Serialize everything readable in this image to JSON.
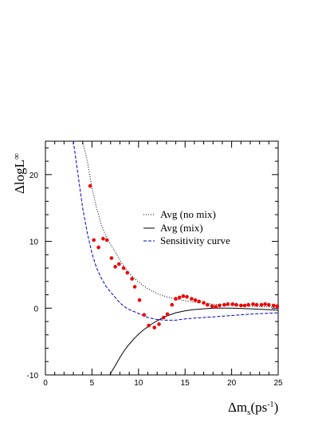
{
  "chart_data": {
    "type": "line",
    "xlabel_main": "Δm",
    "xlabel_sub": "s",
    "xlabel_unit_open": "(ps",
    "xlabel_unit_sup": "-1",
    "xlabel_unit_close": ")",
    "ylabel": "ΔlogL",
    "ylabel_sup": "∞",
    "xlim": [
      0,
      25
    ],
    "ylim": [
      -10,
      25
    ],
    "x_ticks": [
      "0",
      "5",
      "10",
      "15",
      "20",
      "25"
    ],
    "y_ticks": [
      "-10",
      "0",
      "10",
      "20"
    ],
    "legend_placement": "center-right",
    "series": [
      {
        "name": "Avg (no mix)",
        "style": "dotted",
        "color": "#000000",
        "x": [
          4.0,
          4.5,
          5.0,
          5.5,
          6.0,
          6.5,
          7.0,
          7.5,
          8.0,
          8.5,
          9.0,
          9.5,
          10.0,
          11.0,
          12.0,
          13.0,
          14.0,
          15.0,
          16.0,
          18.0,
          20.0,
          22.0,
          25.0
        ],
        "y": [
          25,
          22,
          18,
          15,
          12.5,
          10.8,
          9.5,
          8.4,
          7.2,
          6.1,
          5.2,
          4.5,
          3.9,
          2.9,
          2.2,
          1.7,
          1.4,
          1.1,
          0.9,
          0.6,
          0.4,
          0.3,
          0.1
        ]
      },
      {
        "name": "Avg (mix)",
        "style": "solid",
        "color": "#000000",
        "x": [
          6.9,
          7.5,
          8.0,
          8.5,
          9.0,
          9.5,
          10.0,
          10.5,
          11.0,
          11.5,
          12.0,
          12.5,
          13.0,
          14.0,
          15.0,
          16.0,
          18.0,
          20.0,
          22.0,
          25.0
        ],
        "y": [
          -10.0,
          -8.6,
          -7.4,
          -6.3,
          -5.4,
          -4.6,
          -3.9,
          -3.3,
          -2.8,
          -2.3,
          -1.9,
          -1.5,
          -1.2,
          -0.7,
          -0.4,
          -0.2,
          0.0,
          0.0,
          -0.1,
          -0.3
        ]
      },
      {
        "name": "Sensitivity curve",
        "style": "dashed",
        "color": "#0000cc",
        "x": [
          3.0,
          3.5,
          4.0,
          4.5,
          5.0,
          5.5,
          6.0,
          6.5,
          7.0,
          7.5,
          8.0,
          8.5,
          9.0,
          10.0,
          11.0,
          12.0,
          13.0,
          14.0,
          15.0,
          16.0,
          18.0,
          20.0,
          22.0,
          25.0
        ],
        "y": [
          25,
          20,
          15,
          11.2,
          8.2,
          6.0,
          4.5,
          3.3,
          2.4,
          1.6,
          0.8,
          0.2,
          -0.2,
          -0.8,
          -1.4,
          -1.7,
          -1.8,
          -1.8,
          -1.6,
          -1.5,
          -1.3,
          -1.1,
          -0.9,
          -0.7
        ]
      }
    ],
    "points": {
      "color": "#ee0000",
      "x": [
        4.8,
        5.2,
        5.7,
        6.2,
        6.6,
        7.1,
        7.5,
        7.9,
        8.4,
        8.8,
        9.3,
        9.6,
        10.1,
        10.6,
        11.1,
        11.7,
        12.2,
        12.7,
        13.1,
        13.6,
        14.0,
        14.4,
        14.8,
        15.2,
        15.7,
        16.1,
        16.5,
        17.0,
        17.4,
        17.9,
        18.3,
        18.7,
        19.2,
        19.6,
        20.1,
        20.5,
        21.0,
        21.4,
        21.8,
        22.3,
        22.7,
        23.2,
        23.6,
        24.0,
        24.5,
        24.9
      ],
      "y": [
        18.3,
        10.2,
        9.1,
        10.4,
        10.2,
        7.5,
        6.2,
        6.6,
        6.0,
        5.3,
        4.4,
        3.2,
        1.2,
        -1.0,
        -2.6,
        -2.9,
        -2.4,
        -1.4,
        -0.9,
        0.5,
        1.4,
        1.6,
        1.8,
        1.7,
        1.4,
        1.2,
        1.0,
        0.8,
        0.5,
        0.3,
        0.2,
        0.4,
        0.5,
        0.6,
        0.6,
        0.5,
        0.4,
        0.4,
        0.5,
        0.6,
        0.5,
        0.5,
        0.6,
        0.5,
        0.4,
        0.3
      ]
    }
  }
}
